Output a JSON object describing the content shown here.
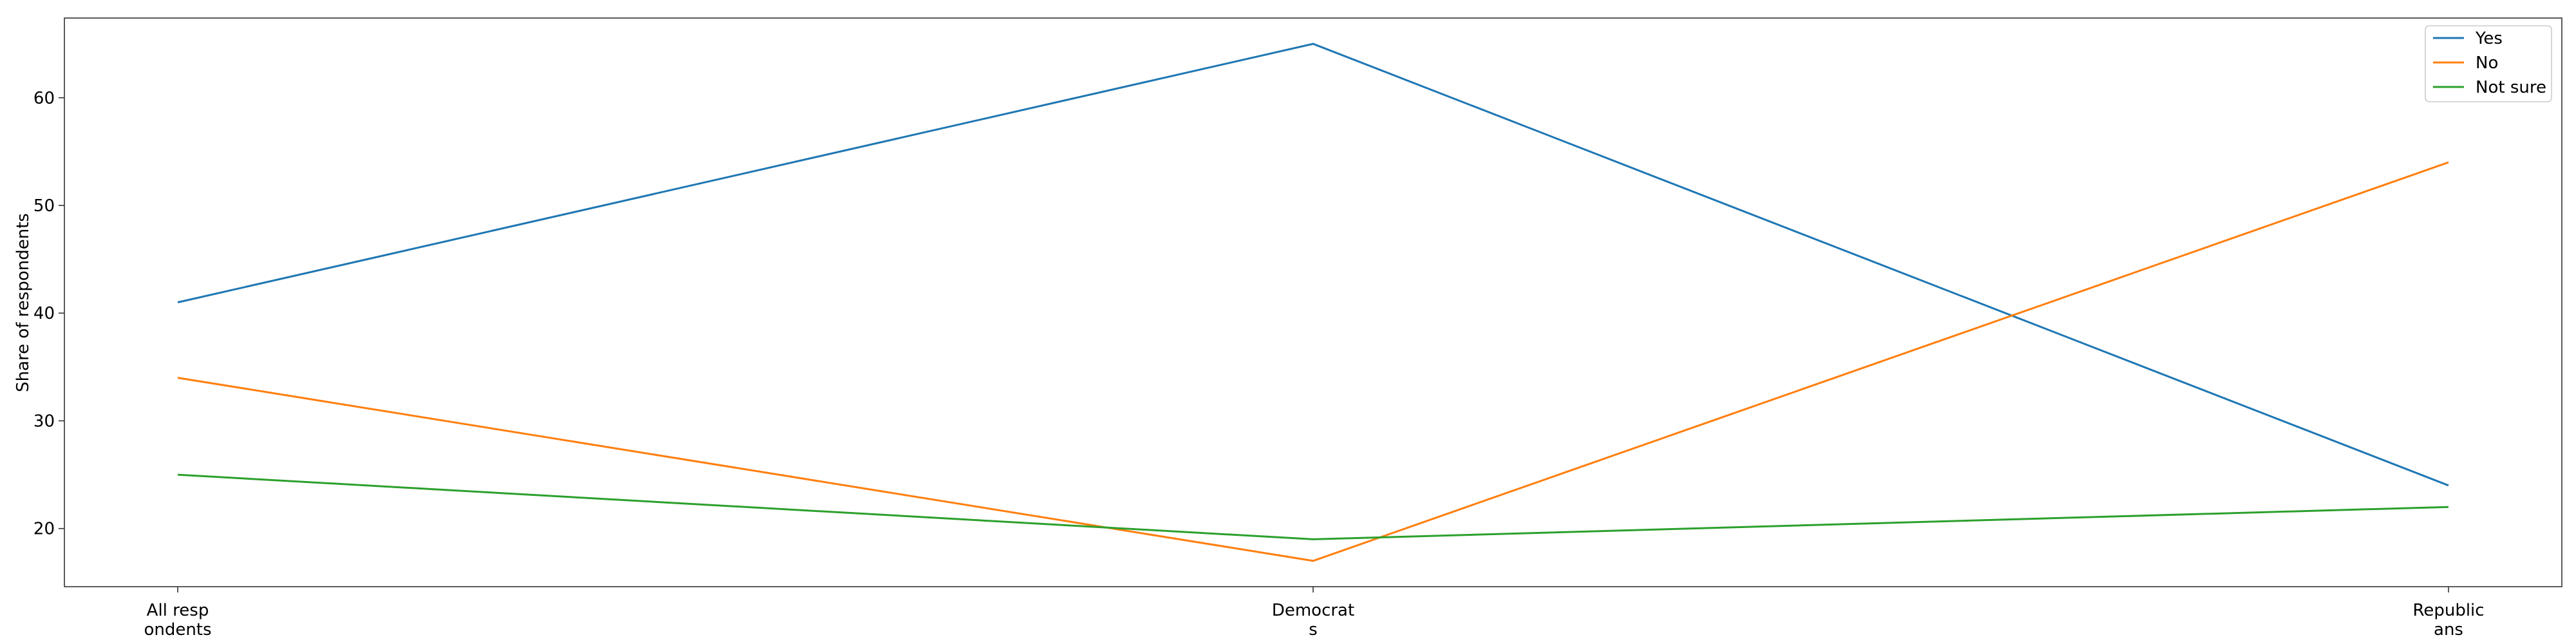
{
  "chart_data": {
    "type": "line",
    "title": "",
    "xlabel": "",
    "ylabel": "Share of respondents",
    "categories": [
      [
        "All resp",
        "ondents"
      ],
      [
        "Democrat",
        "s"
      ],
      [
        "Republic",
        "ans"
      ]
    ],
    "series": [
      {
        "name": "Yes",
        "color": "#1f77b4",
        "values": [
          41,
          65,
          24
        ]
      },
      {
        "name": "No",
        "color": "#ff7f0e",
        "values": [
          34,
          17,
          54
        ]
      },
      {
        "name": "Not sure",
        "color": "#2ca02c",
        "values": [
          25,
          19,
          22
        ]
      }
    ],
    "yticks": [
      20,
      30,
      40,
      50,
      60
    ],
    "ylim": [
      14.6,
      67.4
    ],
    "grid": false,
    "legend_position": "top-right"
  }
}
